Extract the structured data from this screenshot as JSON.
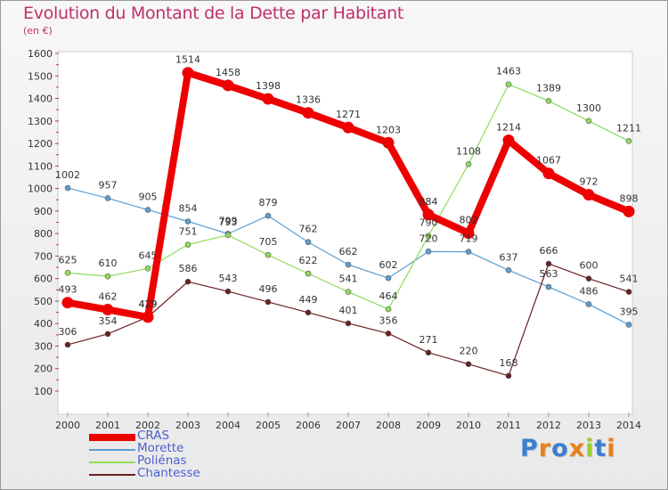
{
  "title": "Evolution du Montant de la Dette par Habitant",
  "subtitle": "(en €)",
  "logo": {
    "text": "Proxiti",
    "colors": [
      "#3a7fd0",
      "#e8811a",
      "#3a7fd0",
      "#e8811a",
      "#9acd32",
      "#3a7fd0",
      "#e8811a"
    ]
  },
  "chart_data": {
    "type": "line",
    "title": "Evolution du Montant de la Dette par Habitant",
    "ylabel": "(en €)",
    "x": [
      "2000",
      "2001",
      "2002",
      "2003",
      "2004",
      "2005",
      "2006",
      "2007",
      "2008",
      "2009",
      "2010",
      "2011",
      "2012",
      "2013",
      "2014"
    ],
    "yticks": [
      "100",
      "200",
      "300",
      "400",
      "500",
      "600",
      "700",
      "800",
      "900",
      "1000",
      "1100",
      "1200",
      "1300",
      "1400",
      "1500",
      "1600"
    ],
    "ylim": [
      100,
      1600
    ],
    "grid": false,
    "legend": "bottom-left",
    "series": [
      {
        "name": "CRAS",
        "color": "#ee0000",
        "values": [
          493,
          462,
          429,
          1514,
          1458,
          1398,
          1336,
          1271,
          1203,
          884,
          802,
          1214,
          1067,
          972,
          898
        ],
        "labels": [
          "493",
          "462",
          "429",
          "1514",
          "1458",
          "1398",
          "1336",
          "1271",
          "1203",
          "884",
          "802",
          "1214",
          "1067",
          "972",
          "898"
        ]
      },
      {
        "name": "Morette",
        "color": "#5a9fd4",
        "values": [
          1002,
          957,
          905,
          854,
          799,
          879,
          762,
          662,
          602,
          720,
          719,
          637,
          563,
          486,
          395
        ],
        "labels": [
          "1002",
          "957",
          "905",
          "854",
          "799",
          "879",
          "762",
          "662",
          "602",
          "720",
          "719",
          "637",
          "563",
          "486",
          "395"
        ]
      },
      {
        "name": "Poliénas",
        "color": "#8fdc5a",
        "values": [
          625,
          610,
          645,
          751,
          793,
          705,
          622,
          541,
          464,
          790,
          1108,
          1463,
          1389,
          1300,
          1211
        ],
        "labels": [
          "625",
          "610",
          "645",
          "751",
          "793",
          "705",
          "622",
          "541",
          "464",
          "790",
          "1108",
          "1463",
          "1389",
          "1300",
          "1211"
        ]
      },
      {
        "name": "Chantesse",
        "color": "#6b2020",
        "values": [
          306,
          354,
          429,
          586,
          543,
          496,
          449,
          401,
          356,
          271,
          220,
          168,
          666,
          600,
          541
        ],
        "labels": [
          "306",
          "354",
          "429",
          "586",
          "543",
          "496",
          "449",
          "401",
          "356",
          "271",
          "220",
          "168",
          "666",
          "600",
          "541"
        ]
      }
    ]
  }
}
